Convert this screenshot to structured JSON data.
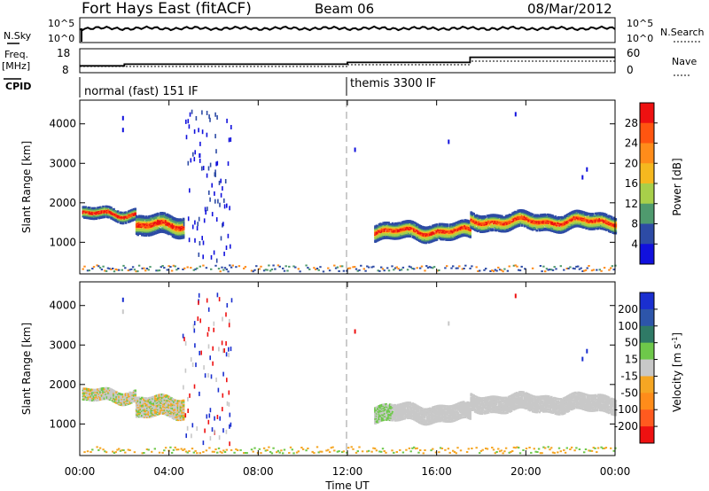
{
  "header": {
    "station": "Fort Hays East (fitACF)",
    "beam": "Beam 06",
    "date": "08/Mar/2012"
  },
  "noise_panel": {
    "left_label": "N.Sky",
    "left_ticks": [
      "10^5",
      "10^0"
    ],
    "right_ticks": [
      "10^5",
      "10^0"
    ],
    "right_label": "N.Search"
  },
  "freq_panel": {
    "left_label_top": "Freq.",
    "left_label_unit": "[MHz]",
    "left_ticks": [
      "18",
      "8"
    ],
    "right_ticks": [
      "60",
      "0"
    ],
    "right_label": "Nave"
  },
  "cpid": {
    "label": "CPID",
    "modes": [
      "normal (fast) 151 IF",
      "themis 3300 IF"
    ]
  },
  "x_axis": {
    "title": "Time UT",
    "ticks": [
      "00:00",
      "04:00",
      "08:00",
      "12:00",
      "16:00",
      "20:00",
      "00:00"
    ]
  },
  "power_panel": {
    "ylabel": "Slant Range [km]",
    "yticks": [
      "4000",
      "3000",
      "2000",
      "1000"
    ],
    "cbar_label": "Power [dB]",
    "cbar_ticks": [
      "28",
      "24",
      "20",
      "16",
      "12",
      "8",
      "4"
    ],
    "cbar_colors": [
      "#ee1111",
      "#ff5510",
      "#ff8c1a",
      "#f5b81f",
      "#a8cf4a",
      "#4f9a6e",
      "#2d4ba5",
      "#1111dd"
    ]
  },
  "velocity_panel": {
    "ylabel": "Slant Range [km]",
    "yticks": [
      "4000",
      "3000",
      "2000",
      "1000"
    ],
    "cbar_label": "Velocity [m s^-1]",
    "cbar_ticks": [
      "200",
      "100",
      "50",
      "15",
      "-15",
      "-50",
      "-100",
      "-200"
    ],
    "cbar_colors": [
      "#1a2fd0",
      "#2d55aa",
      "#2f7a66",
      "#6ec84a",
      "#c8c8c8",
      "#f5a623",
      "#ff8c1a",
      "#ff5a1f",
      "#ee1111"
    ]
  },
  "chart_data": {
    "type": "heatmap",
    "title": "Fort Hays East (fitACF) Beam 06 08/Mar/2012",
    "xlabel": "Time UT",
    "ylabel": "Slant Range [km]",
    "xlim_hours": [
      0,
      24
    ],
    "ylim_km": [
      200,
      4600
    ],
    "mode_change_hour": 12,
    "frequency_steps": [
      {
        "from_hour": 0,
        "to_hour": 2,
        "freq_mhz": 10
      },
      {
        "from_hour": 2,
        "to_hour": 12,
        "freq_mhz": 11
      },
      {
        "from_hour": 12,
        "to_hour": 17.5,
        "freq_mhz": 12
      },
      {
        "from_hour": 17.5,
        "to_hour": 24,
        "freq_mhz": 15
      }
    ],
    "scatter_bands": [
      {
        "from_hour": 0.1,
        "to_hour": 2.5,
        "center_km": 1750,
        "width_km": 150
      },
      {
        "from_hour": 2.5,
        "to_hour": 4.6,
        "center_km": 1450,
        "width_km": 250
      },
      {
        "from_hour": 13.2,
        "to_hour": 17.5,
        "center_km": 1300,
        "width_km": 200
      },
      {
        "from_hour": 17.5,
        "to_hour": 24,
        "center_km": 1550,
        "width_km": 200
      }
    ]
  }
}
